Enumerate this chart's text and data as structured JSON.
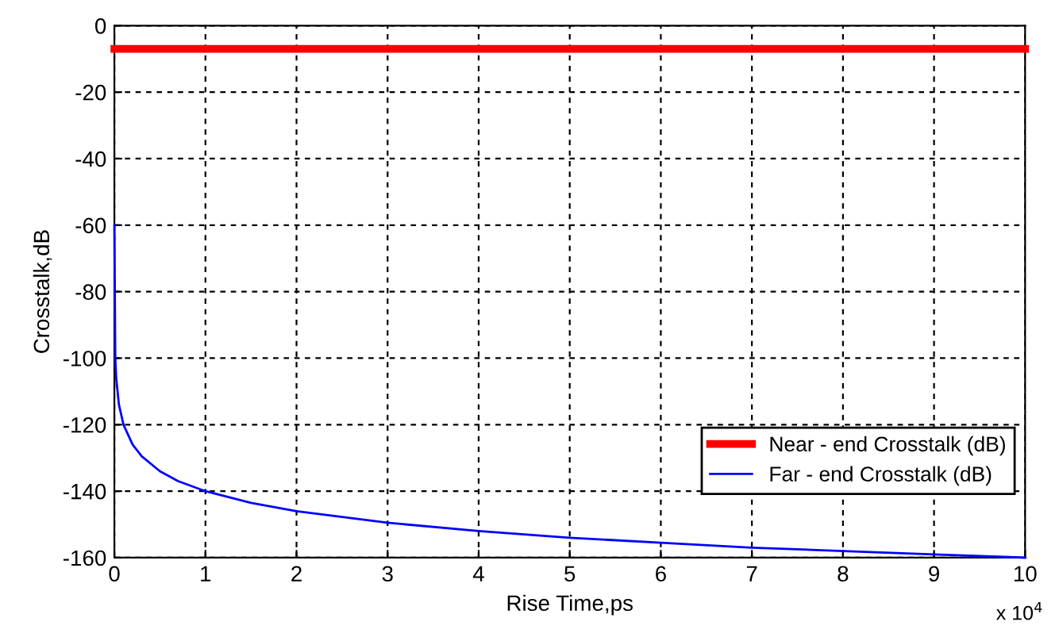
{
  "chart_data": {
    "type": "line",
    "xlabel": "Rise Time,ps",
    "ylabel": "Crosstalk,dB",
    "annotations": [
      "x 10$^{4}$"
    ],
    "xlim": [
      0,
      10
    ],
    "xticks": [
      0,
      1,
      2,
      3,
      4,
      5,
      6,
      7,
      8,
      9,
      10
    ],
    "ylim": [
      -160,
      0
    ],
    "yticks": [
      -160,
      -140,
      -120,
      -100,
      -80,
      -60,
      -40,
      -20,
      0
    ],
    "grid": true,
    "legend": "bottom right",
    "marker": "none",
    "line_style": "solid",
    "series": [
      {
        "name": "Near - end Crosstalk (dB)",
        "color": "#ff0000",
        "x": [
          0,
          10
        ],
        "values": [
          -7,
          -7
        ]
      },
      {
        "name": "Far - end Crosstalk (dB)",
        "color": "#0000ff",
        "x": [
          0,
          0.01,
          0.02,
          0.05,
          0.1,
          0.2,
          0.3,
          0.5,
          0.7,
          1,
          1.5,
          2,
          3,
          4,
          5,
          6,
          7,
          8,
          9,
          10
        ],
        "values": [
          -60,
          -100,
          -106,
          -114,
          -120,
          -126,
          -129.5,
          -134,
          -137,
          -140,
          -143.5,
          -146,
          -149.5,
          -152,
          -154,
          -155.5,
          -157,
          -158,
          -159,
          -160
        ]
      }
    ]
  }
}
